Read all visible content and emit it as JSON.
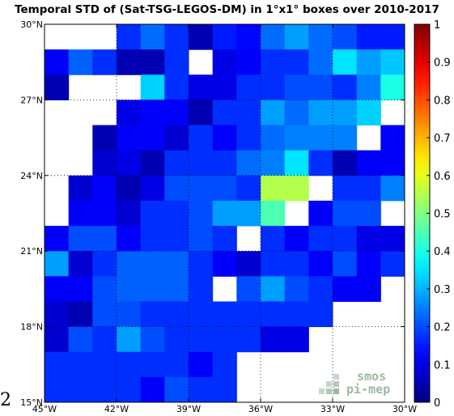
{
  "title": "Temporal STD of (Sat-TSG-LEGOS-DM) in 1°x1° boxes over 2010-2017",
  "page_number": "2",
  "logo": {
    "line1": "smos",
    "line2": "pi-mep"
  },
  "chart_data": {
    "type": "heatmap",
    "title": "Temporal STD of (Sat-TSG-LEGOS-DM) in 1°x1° boxes over 2010-2017",
    "x_ticks": [
      "45°W",
      "42°W",
      "39°W",
      "36°W",
      "33°W",
      "30°W"
    ],
    "y_ticks": [
      "30°N",
      "27°N",
      "24°N",
      "21°N",
      "18°N",
      "15°N"
    ],
    "xlim": [
      -45,
      -30
    ],
    "ylim": [
      15,
      30
    ],
    "grid": true,
    "colorbar": {
      "range": [
        0,
        1
      ],
      "ticks": [
        "0",
        "0.1",
        "0.2",
        "0.3",
        "0.4",
        "0.5",
        "0.6",
        "0.7",
        "0.8",
        "0.9",
        "1"
      ]
    },
    "grid_values_north_to_south": [
      [
        null,
        null,
        null,
        0.17,
        0.23,
        0.17,
        0.05,
        0.15,
        0.13,
        0.23,
        0.28,
        0.23,
        0.2,
        0.15,
        0.15
      ],
      [
        0.12,
        0.22,
        0.17,
        0.05,
        0.05,
        0.17,
        null,
        0.1,
        0.12,
        0.17,
        0.17,
        0.23,
        0.35,
        0.28,
        0.32
      ],
      [
        0.05,
        null,
        null,
        null,
        0.33,
        0.17,
        0.1,
        0.1,
        0.17,
        0.17,
        0.2,
        0.2,
        0.17,
        0.25,
        0.4
      ],
      [
        null,
        null,
        null,
        0.1,
        0.12,
        0.12,
        0.05,
        0.17,
        0.17,
        0.28,
        0.23,
        0.28,
        0.28,
        0.33,
        null
      ],
      [
        null,
        null,
        0.05,
        0.12,
        0.12,
        0.08,
        0.17,
        0.12,
        0.17,
        0.23,
        0.25,
        0.25,
        0.25,
        null,
        0.12
      ],
      [
        null,
        null,
        0.08,
        0.1,
        0.05,
        0.17,
        0.17,
        0.17,
        0.23,
        0.25,
        0.35,
        0.17,
        0.05,
        0.12,
        0.12
      ],
      [
        null,
        0.08,
        0.12,
        0.05,
        0.1,
        0.2,
        0.2,
        0.2,
        0.17,
        0.55,
        0.55,
        null,
        0.17,
        0.17,
        0.25
      ],
      [
        null,
        0.12,
        0.12,
        0.08,
        0.17,
        0.17,
        0.2,
        0.28,
        0.28,
        0.45,
        null,
        0.12,
        0.2,
        0.2,
        null
      ],
      [
        0.12,
        0.2,
        0.2,
        0.12,
        0.17,
        0.17,
        0.2,
        0.17,
        null,
        0.17,
        0.12,
        0.17,
        0.17,
        0.1,
        0.1
      ],
      [
        0.28,
        0.08,
        0.17,
        0.22,
        0.22,
        0.22,
        0.17,
        0.12,
        0.08,
        0.17,
        0.17,
        0.12,
        0.2,
        0.12,
        0.17
      ],
      [
        0.12,
        0.12,
        0.2,
        0.22,
        0.22,
        0.22,
        0.17,
        null,
        0.2,
        0.28,
        0.2,
        0.17,
        0.12,
        0.12,
        null
      ],
      [
        0.08,
        0.05,
        0.2,
        0.2,
        0.17,
        0.17,
        0.17,
        0.17,
        0.17,
        0.17,
        0.17,
        0.17,
        null,
        null,
        null
      ],
      [
        0.08,
        0.2,
        0.17,
        0.28,
        0.2,
        0.17,
        0.17,
        0.17,
        0.17,
        0.1,
        0.1,
        null,
        null,
        null,
        null
      ],
      [
        0.17,
        0.17,
        0.17,
        0.17,
        0.17,
        0.17,
        0.12,
        0.17,
        null,
        null,
        null,
        null,
        null,
        null,
        null
      ],
      [
        0.17,
        0.17,
        0.17,
        0.17,
        0.12,
        0.2,
        0.17,
        0.17,
        null,
        null,
        null,
        null,
        null,
        null,
        null
      ]
    ]
  }
}
